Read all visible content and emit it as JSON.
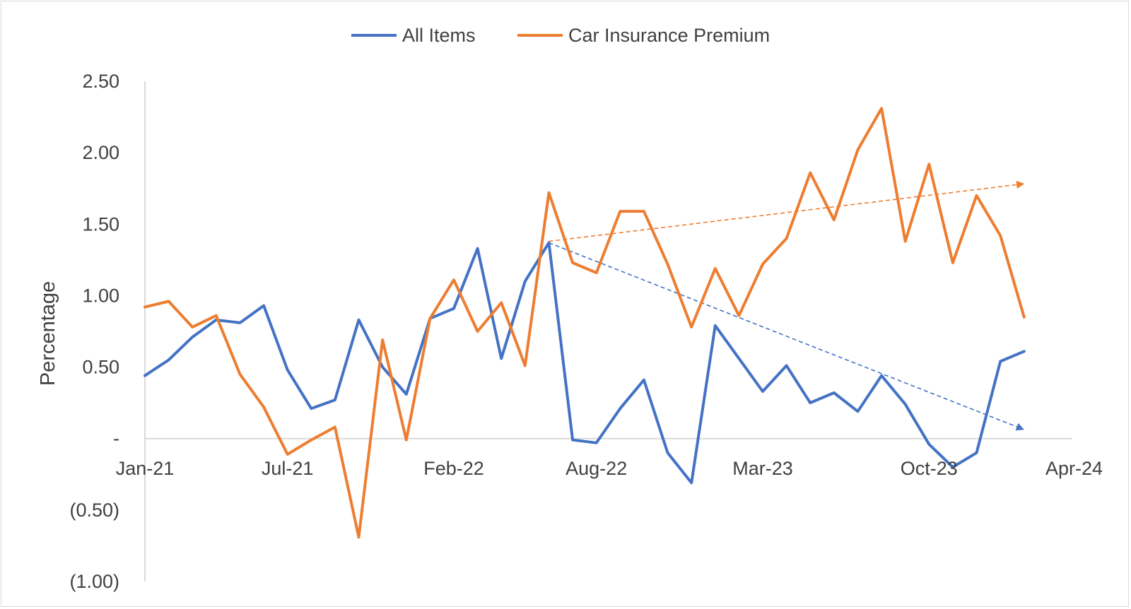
{
  "chart_data": {
    "type": "line",
    "title": "",
    "xlabel": "",
    "ylabel": "Percentage",
    "legend_position": "top-center",
    "grid": false,
    "x": [
      "Jan-21",
      "Feb-21",
      "Mar-21",
      "Apr-21",
      "May-21",
      "Jun-21",
      "Jul-21",
      "Aug-21",
      "Sep-21",
      "Oct-21",
      "Nov-21",
      "Dec-21",
      "Jan-22",
      "Feb-22",
      "Mar-22",
      "Apr-22",
      "May-22",
      "Jun-22",
      "Jul-22",
      "Aug-22",
      "Sep-22",
      "Oct-22",
      "Nov-22",
      "Dec-22",
      "Jan-23",
      "Feb-23",
      "Mar-23",
      "Apr-23",
      "May-23",
      "Jun-23",
      "Jul-23",
      "Aug-23",
      "Sep-23",
      "Oct-23",
      "Nov-23",
      "Dec-23",
      "Jan-24",
      "Feb-24"
    ],
    "x_tick_labels": [
      "Jan-21",
      "Jul-21",
      "Feb-22",
      "Aug-22",
      "Mar-23",
      "Oct-23",
      "Apr-24"
    ],
    "x_tick_positions": [
      "Jan-21",
      "Jul-21",
      "Feb-22",
      "Aug-22",
      "Mar-23",
      "Oct-23",
      "Apr-24"
    ],
    "x_range": [
      "Jan-21",
      "Apr-24"
    ],
    "ylim": [
      -1.0,
      2.5
    ],
    "y_ticks": [
      2.5,
      2.0,
      1.5,
      1.0,
      0.5,
      0,
      -0.5,
      -1.0
    ],
    "y_tick_labels": [
      "2.50",
      "2.00",
      "1.50",
      "1.00",
      "0.50",
      "-",
      "(0.50)",
      "(1.00)"
    ],
    "series": [
      {
        "name": "All Items",
        "color": "#4472c4",
        "values": [
          0.44,
          0.55,
          0.71,
          0.83,
          0.81,
          0.93,
          0.48,
          0.21,
          0.27,
          0.83,
          0.5,
          0.31,
          0.84,
          0.91,
          1.33,
          0.56,
          1.1,
          1.37,
          -0.01,
          -0.03,
          0.21,
          0.41,
          -0.1,
          -0.31,
          0.79,
          0.56,
          0.33,
          0.51,
          0.25,
          0.32,
          0.19,
          0.44,
          0.24,
          -0.04,
          -0.2,
          -0.1,
          0.54,
          0.61
        ]
      },
      {
        "name": "Car Insurance Premium",
        "color": "#ed7d31",
        "values": [
          0.92,
          0.96,
          0.78,
          0.86,
          0.45,
          0.22,
          -0.11,
          -0.01,
          0.08,
          -0.69,
          0.69,
          -0.01,
          0.84,
          1.11,
          0.75,
          0.95,
          0.51,
          1.72,
          1.23,
          1.16,
          1.59,
          1.59,
          1.22,
          0.78,
          1.19,
          0.86,
          1.22,
          1.4,
          1.86,
          1.53,
          2.02,
          2.31,
          1.38,
          1.92,
          1.23,
          1.7,
          1.42,
          0.85
        ]
      }
    ],
    "trendlines": [
      {
        "series": "Car Insurance Premium",
        "color": "#ed7d31",
        "from": {
          "x": "Jun-22",
          "y": 1.38
        },
        "to": {
          "x": "Feb-24",
          "y": 1.78
        }
      },
      {
        "series": "All Items",
        "color": "#4472c4",
        "from": {
          "x": "Jun-22",
          "y": 1.37
        },
        "to": {
          "x": "Feb-24",
          "y": 0.07
        }
      }
    ]
  }
}
